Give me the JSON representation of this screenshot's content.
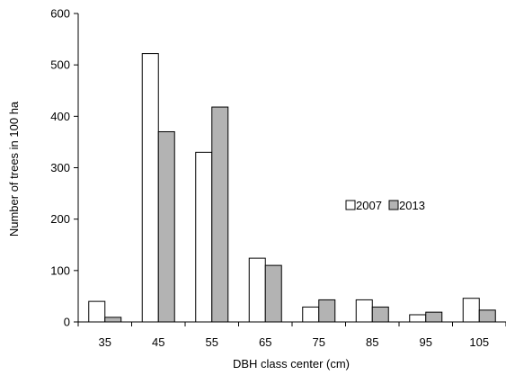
{
  "chart_data": {
    "type": "bar",
    "xlabel": "DBH class center (cm)",
    "ylabel": "Number of trees  in 100 ha",
    "categories": [
      "35",
      "45",
      "55",
      "65",
      "75",
      "85",
      "95",
      "105"
    ],
    "series": [
      {
        "name": "2007",
        "values": [
          40,
          522,
          330,
          124,
          29,
          43,
          14,
          46
        ],
        "color": "#ffffff"
      },
      {
        "name": "2013",
        "values": [
          9,
          370,
          418,
          110,
          43,
          29,
          19,
          23
        ],
        "color": "#b3b3b3"
      }
    ],
    "ylim": [
      0,
      600
    ],
    "yticks": [
      0,
      100,
      200,
      300,
      400,
      500,
      600
    ],
    "grid": false,
    "legend_position": "right"
  }
}
